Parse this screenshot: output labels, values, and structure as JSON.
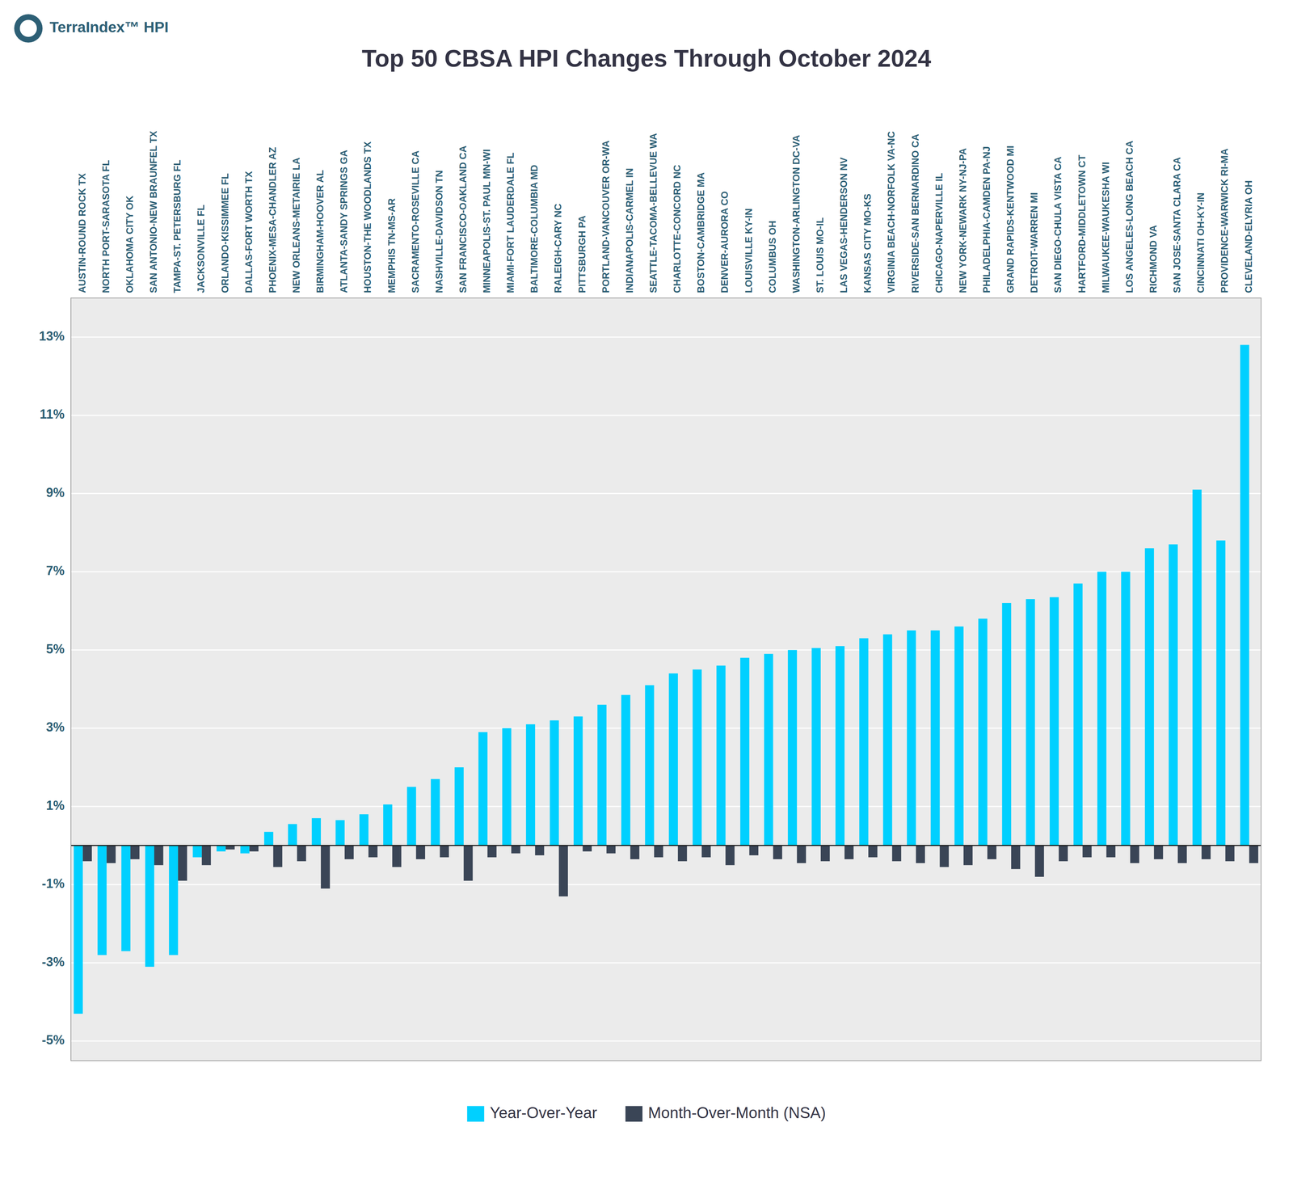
{
  "chart_data": {
    "type": "bar",
    "title": "Top 50 CBSA HPI Changes Through October 2024",
    "annotations": [
      "TerraIndex™ HPI"
    ],
    "categories": [
      "AUSTIN-ROUND ROCK TX",
      "NORTH PORT-SARASOTA FL",
      "OKLAHOMA CITY OK",
      "SAN ANTONIO-NEW BRAUNFEL TX",
      "TAMPA-ST. PETERSBURG FL",
      "JACKSONVILLE FL",
      "ORLANDO-KISSIMMEE FL",
      "DALLAS-FORT WORTH TX",
      "PHOENIX-MESA-CHANDLER AZ",
      "NEW ORLEANS-METAIRIE LA",
      "BIRMINGHAM-HOOVER AL",
      "ATLANTA-SANDY SPRINGS GA",
      "HOUSTON-THE WOODLANDS TX",
      "MEMPHIS TN-MS-AR",
      "SACRAMENTO-ROSEVILLE CA",
      "NASHVILLE-DAVIDSON TN",
      "SAN FRANCISCO-OAKLAND CA",
      "MINNEAPOLIS-ST. PAUL MN-WI",
      "MIAMI-FORT LAUDERDALE FL",
      "BALTIMORE-COLUMBIA MD",
      "RALEIGH-CARY NC",
      "PITTSBURGH PA",
      "PORTLAND-VANCOUVER OR-WA",
      "INDIANAPOLIS-CARMEL IN",
      "SEATTLE-TACOMA-BELLEVUE WA",
      "CHARLOTTE-CONCORD NC",
      "BOSTON-CAMBRIDGE MA",
      "DENVER-AURORA CO",
      "LOUISVILLE KY-IN",
      "COLUMBUS OH",
      "WASHINGTON-ARLINGTON DC-VA",
      "ST. LOUIS MO-IL",
      "LAS VEGAS-HENDERSON NV",
      "KANSAS CITY MO-KS",
      "VIRGINIA BEACH-NORFOLK VA-NC",
      "RIVERSIDE-SAN BERNARDINO CA",
      "CHICAGO-NAPERVILLE IL",
      "NEW YORK-NEWARK NY-NJ-PA",
      "PHILADELPHIA-CAMDEN PA-NJ",
      "GRAND RAPIDS-KENTWOOD MI",
      "DETROIT-WARREN MI",
      "SAN DIEGO-CHULA VISTA CA",
      "HARTFORD-MIDDLETOWN CT",
      "MILWAUKEE-WAUKESHA WI",
      "LOS ANGELES-LONG BEACH CA",
      "RICHMOND VA",
      "SAN JOSE-SANTA CLARA CA",
      "CINCINNATI OH-KY-IN",
      "PROVIDENCE-WARWICK RI-MA",
      "CLEVELAND-ELYRIA OH"
    ],
    "series": [
      {
        "name": "Year-Over-Year",
        "color": "#00D0FF",
        "values": [
          -4.3,
          -2.8,
          -2.7,
          -3.1,
          -2.8,
          -0.3,
          -0.15,
          -0.2,
          0.35,
          0.55,
          0.7,
          0.65,
          0.8,
          1.05,
          1.5,
          1.7,
          2.0,
          2.9,
          3.0,
          3.1,
          3.2,
          3.3,
          3.6,
          3.85,
          4.1,
          4.4,
          4.5,
          4.6,
          4.8,
          4.9,
          5.0,
          5.05,
          5.1,
          5.3,
          5.4,
          5.5,
          5.5,
          5.6,
          5.8,
          6.2,
          6.3,
          6.35,
          6.7,
          7.0,
          7.0,
          7.6,
          7.7,
          9.1,
          7.8,
          12.8
        ]
      },
      {
        "name": "Month-Over-Month (NSA)",
        "color": "#3A4556",
        "values": [
          -0.4,
          -0.45,
          -0.35,
          -0.5,
          -0.9,
          -0.5,
          -0.1,
          -0.15,
          -0.55,
          -0.4,
          -1.1,
          -0.35,
          -0.3,
          -0.55,
          -0.35,
          -0.3,
          -0.9,
          -0.3,
          -0.2,
          -0.25,
          -1.3,
          -0.15,
          -0.2,
          -0.35,
          -0.3,
          -0.4,
          -0.3,
          -0.5,
          -0.25,
          -0.35,
          -0.45,
          -0.4,
          -0.35,
          -0.3,
          -0.4,
          -0.45,
          -0.55,
          -0.5,
          -0.35,
          -0.6,
          -0.8,
          -0.4,
          -0.3,
          -0.3,
          -0.45,
          -0.35,
          -0.45,
          -0.35,
          -0.4,
          -0.45
        ]
      }
    ],
    "ylim": [
      -5.5,
      14
    ],
    "yticks": [
      {
        "value": -5,
        "label": "-5%"
      },
      {
        "value": -3,
        "label": "-3%"
      },
      {
        "value": -1,
        "label": "-1%"
      },
      {
        "value": 1,
        "label": "1%"
      },
      {
        "value": 3,
        "label": "3%"
      },
      {
        "value": 5,
        "label": "5%"
      },
      {
        "value": 7,
        "label": "7%"
      },
      {
        "value": 9,
        "label": "9%"
      },
      {
        "value": 11,
        "label": "11%"
      },
      {
        "value": 13,
        "label": "13%"
      }
    ],
    "grid": true,
    "legend": "bottom"
  }
}
